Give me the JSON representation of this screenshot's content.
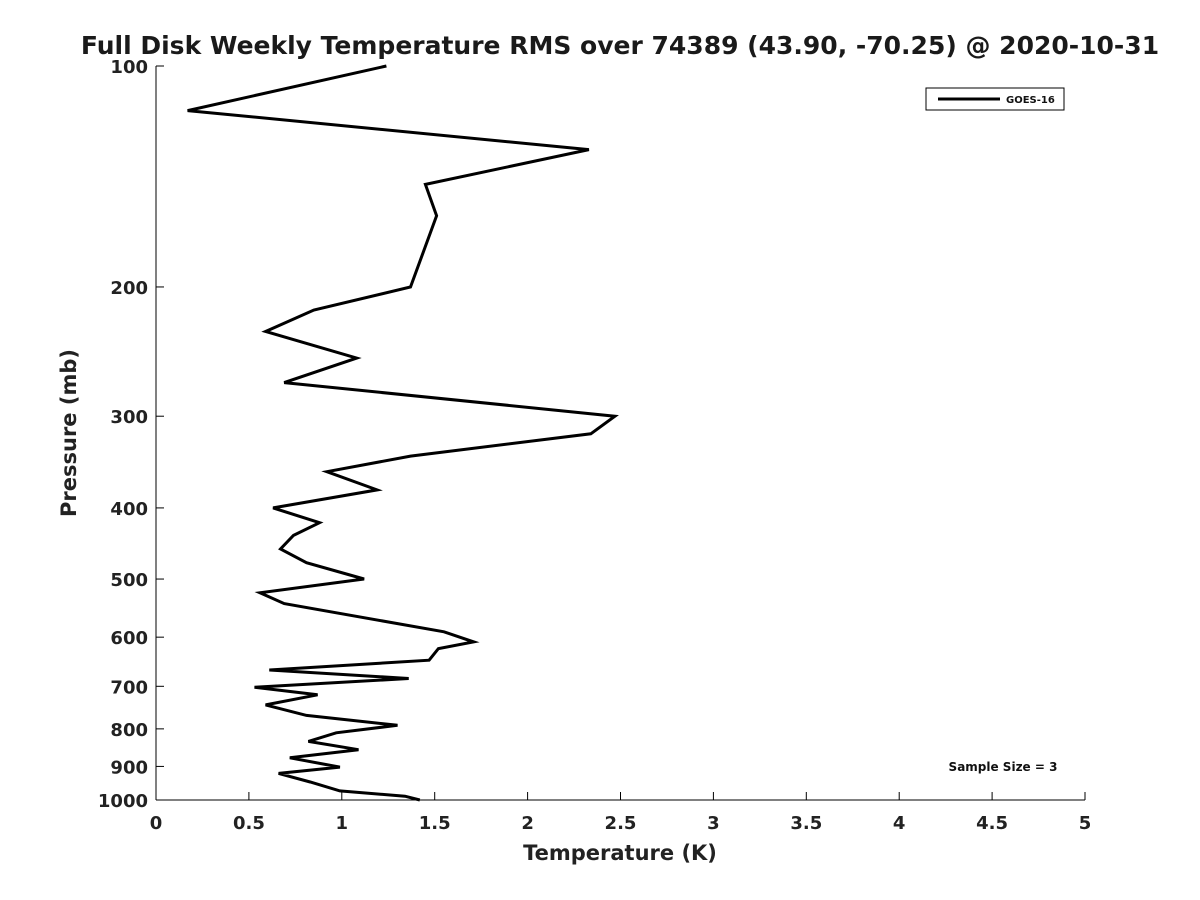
{
  "chart_data": {
    "type": "line",
    "title": "Full Disk Weekly Temperature RMS over 74389 (43.90, -70.25) @ 2020-10-31",
    "xlabel": "Temperature (K)",
    "ylabel": "Pressure (mb)",
    "xlim": [
      0,
      5
    ],
    "ylim": [
      100,
      1000
    ],
    "yscale": "log",
    "y_inverted": true,
    "x_ticks": [
      "0",
      "0.5",
      "1",
      "1.5",
      "2",
      "2.5",
      "3",
      "3.5",
      "4",
      "4.5",
      "5"
    ],
    "y_ticks": [
      "100",
      "200",
      "300",
      "400",
      "500",
      "600",
      "700",
      "800",
      "900",
      "1000"
    ],
    "grid": false,
    "legend": {
      "position": "top-right",
      "entries": [
        "GOES-16"
      ]
    },
    "annotation": "Sample Size = 3",
    "line_color": "#000000",
    "series": [
      {
        "name": "GOES-16",
        "points": [
          [
            1.24,
            100
          ],
          [
            0.17,
            115
          ],
          [
            2.33,
            130
          ],
          [
            1.45,
            145
          ],
          [
            1.51,
            160
          ],
          [
            1.37,
            200
          ],
          [
            0.85,
            215
          ],
          [
            0.59,
            230
          ],
          [
            1.08,
            250
          ],
          [
            0.69,
            270
          ],
          [
            2.47,
            300
          ],
          [
            2.34,
            317
          ],
          [
            1.37,
            340
          ],
          [
            0.92,
            357
          ],
          [
            1.19,
            378
          ],
          [
            0.63,
            400
          ],
          [
            0.88,
            419
          ],
          [
            0.74,
            436
          ],
          [
            0.67,
            455
          ],
          [
            0.81,
            475
          ],
          [
            1.12,
            500
          ],
          [
            0.56,
            522
          ],
          [
            0.69,
            540
          ],
          [
            1.55,
            590
          ],
          [
            1.71,
            609
          ],
          [
            1.52,
            622
          ],
          [
            1.47,
            645
          ],
          [
            0.61,
            665
          ],
          [
            1.36,
            683
          ],
          [
            0.53,
            702
          ],
          [
            0.87,
            719
          ],
          [
            0.59,
            742
          ],
          [
            0.81,
            767
          ],
          [
            1.3,
            791
          ],
          [
            0.97,
            810
          ],
          [
            0.82,
            832
          ],
          [
            1.09,
            854
          ],
          [
            0.72,
            876
          ],
          [
            0.99,
            902
          ],
          [
            0.66,
            920
          ],
          [
            0.83,
            945
          ],
          [
            0.99,
            972
          ],
          [
            1.34,
            988
          ],
          [
            1.42,
            1000
          ]
        ]
      }
    ]
  }
}
